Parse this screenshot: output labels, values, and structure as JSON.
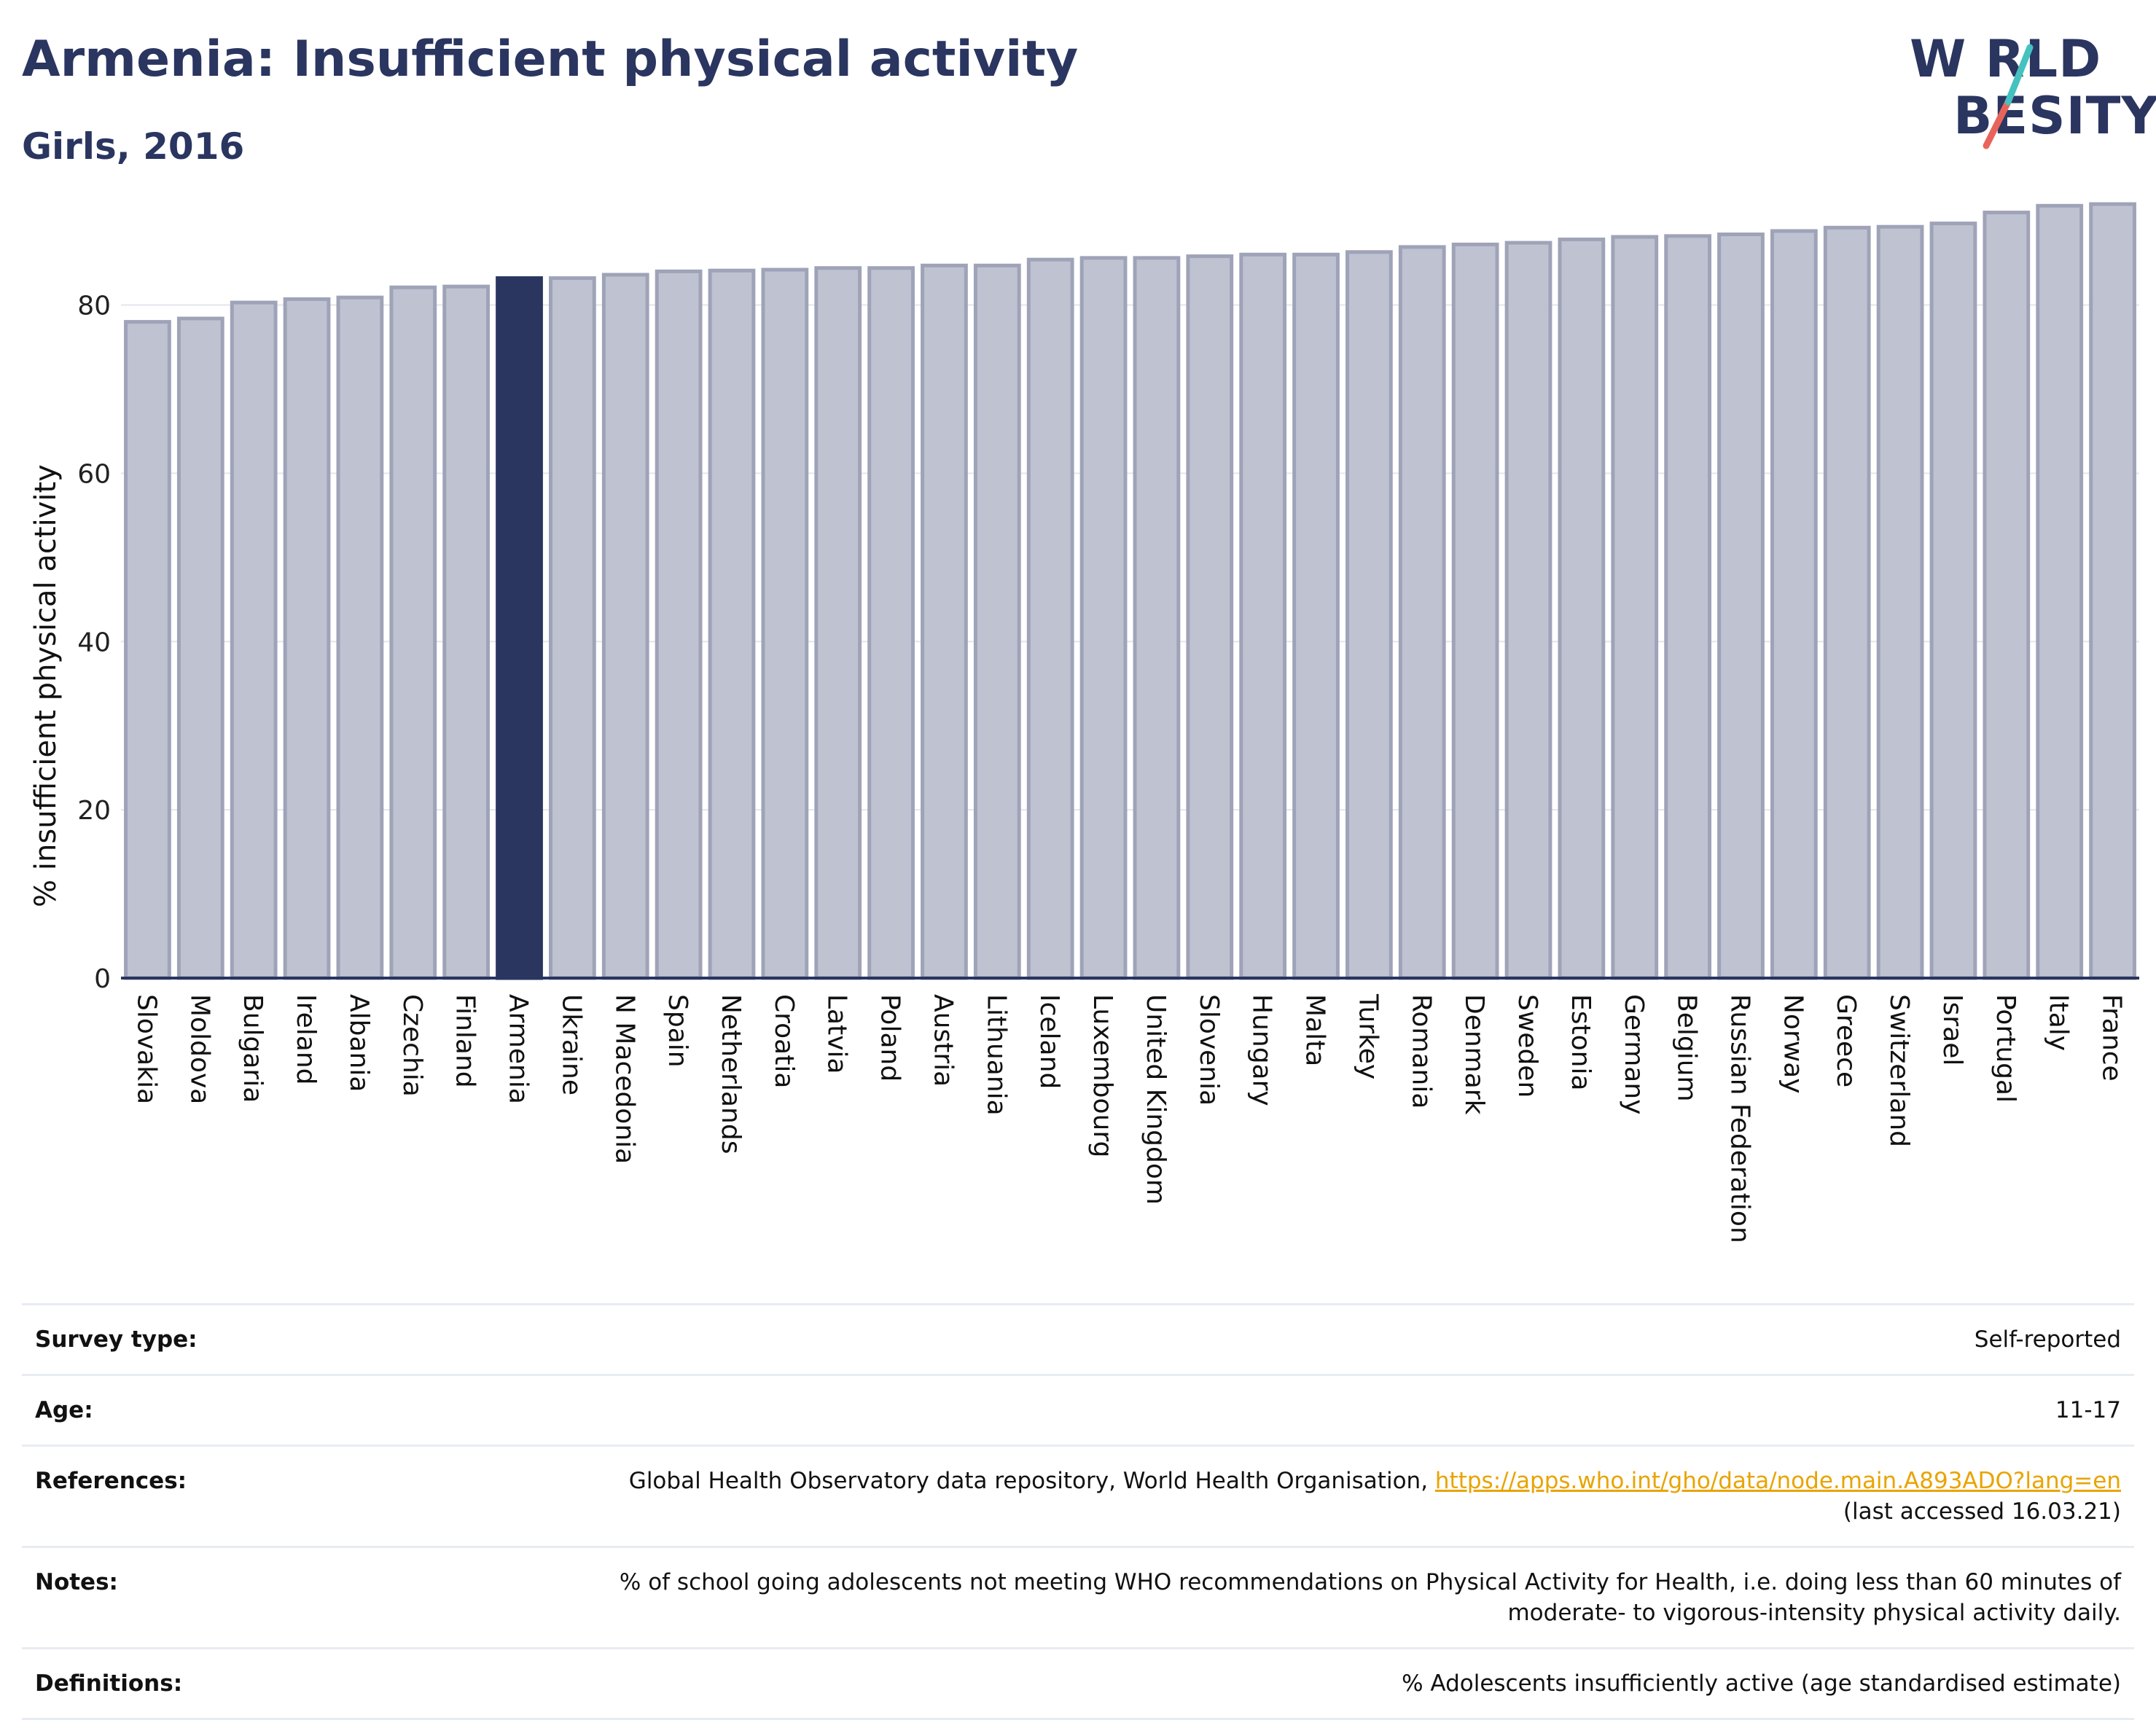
{
  "header": {
    "title": "Armenia: Insufficient physical activity",
    "subtitle": "Girls, 2016"
  },
  "logo": {
    "line1": "W RLD",
    "line2": "BESITY",
    "accent_colors": [
      "#45c1c0",
      "#e8645a"
    ]
  },
  "colors": {
    "bar": "#bfc2d0",
    "bar_stroke": "#9fa3b8",
    "highlight": "#2a3560",
    "text_dark": "#2a3560",
    "link": "#e8a400"
  },
  "chart_data": {
    "type": "bar",
    "highlight": "Armenia",
    "ylabel": "% insufficient physical activity",
    "xlabel": "",
    "ylim": [
      0,
      92
    ],
    "yticks": [
      0,
      20,
      40,
      60,
      80
    ],
    "grid": true,
    "categories": [
      "Slovakia",
      "Moldova",
      "Bulgaria",
      "Ireland",
      "Albania",
      "Czechia",
      "Finland",
      "Armenia",
      "Ukraine",
      "N Macedonia",
      "Spain",
      "Netherlands",
      "Croatia",
      "Latvia",
      "Poland",
      "Austria",
      "Lithuania",
      "Iceland",
      "Luxembourg",
      "United Kingdom",
      "Slovenia",
      "Hungary",
      "Malta",
      "Turkey",
      "Romania",
      "Denmark",
      "Sweden",
      "Estonia",
      "Germany",
      "Belgium",
      "Russian Federation",
      "Norway",
      "Greece",
      "Switzerland",
      "Israel",
      "Portugal",
      "Italy",
      "France"
    ],
    "values": [
      78.0,
      78.4,
      80.3,
      80.7,
      80.9,
      82.1,
      82.2,
      83.2,
      83.2,
      83.6,
      84.0,
      84.1,
      84.2,
      84.4,
      84.4,
      84.7,
      84.7,
      85.4,
      85.6,
      85.6,
      85.8,
      86.0,
      86.0,
      86.3,
      86.9,
      87.2,
      87.4,
      87.8,
      88.1,
      88.2,
      88.4,
      88.8,
      89.2,
      89.3,
      89.7,
      91.0,
      91.8,
      92.0
    ]
  },
  "meta": [
    {
      "label": "Survey type:",
      "value": "Self-reported"
    },
    {
      "label": "Age:",
      "value": "11-17"
    },
    {
      "label": "References:",
      "value": "Global Health Observatory data repository, World Health Organisation,",
      "link": "https://apps.who.int/gho/data/node.main.A893ADO?lang=en",
      "value2": "(last accessed 16.03.21)"
    },
    {
      "label": "Notes:",
      "value": "% of school going adolescents not meeting WHO recommendations on Physical Activity for Health, i.e. doing less than 60 minutes of moderate- to vigorous-intensity physical activity daily."
    },
    {
      "label": "Definitions:",
      "value": "% Adolescents insufficiently active (age standardised estimate)"
    }
  ]
}
